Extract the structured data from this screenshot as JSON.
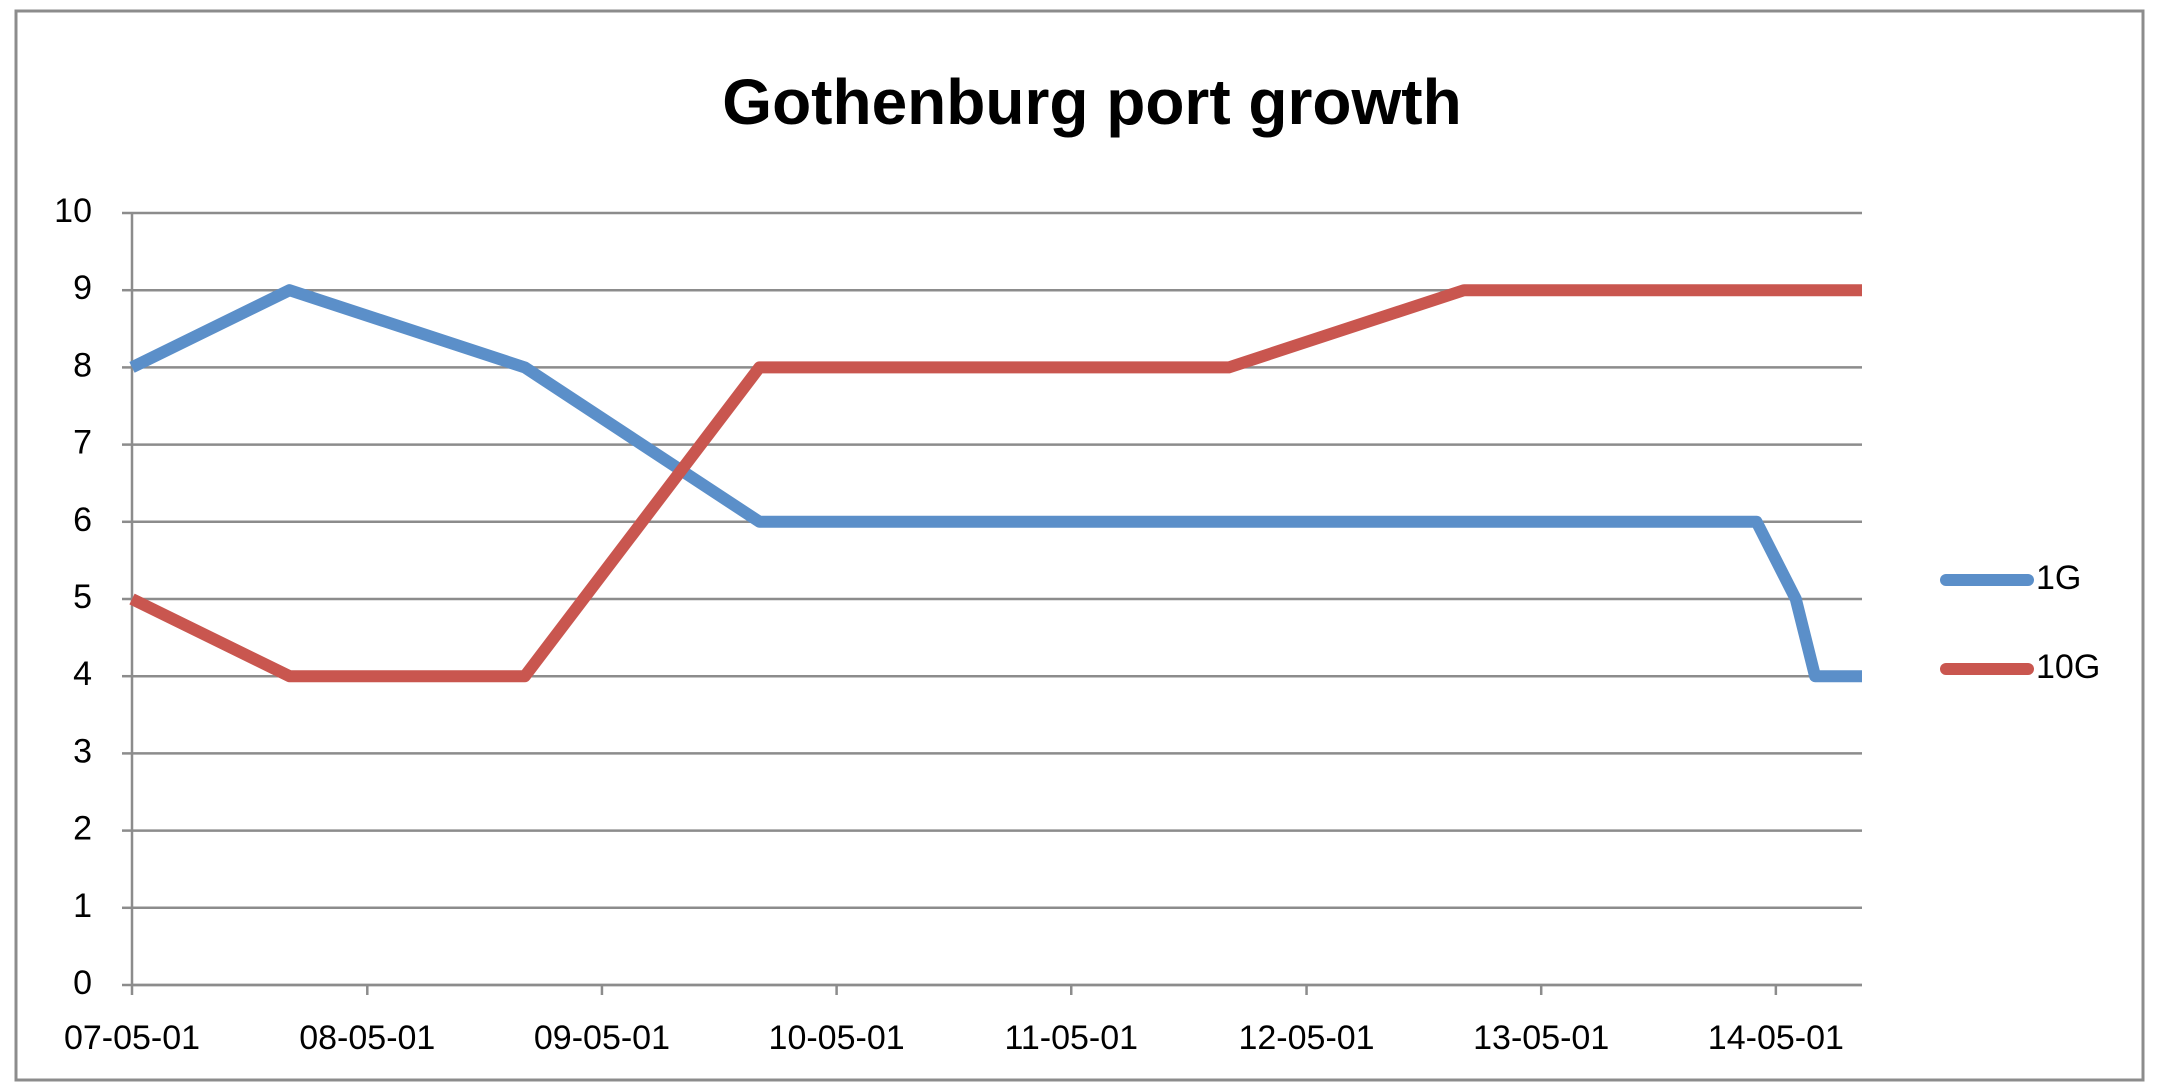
{
  "chart_data": {
    "type": "line",
    "title": "Gothenburg port growth",
    "x": [
      "07-05-01",
      "08-01-01",
      "09-01-01",
      "10-01-01",
      "11-01-01",
      "12-01-01",
      "13-01-01",
      "14-04-01",
      "14-06-01",
      "14-07-01",
      "14-09-12"
    ],
    "series": [
      {
        "name": "1G",
        "color": "#5b8fc9",
        "values": [
          8,
          9,
          8,
          6,
          6,
          6,
          6,
          6,
          5,
          4,
          4
        ]
      },
      {
        "name": "10G",
        "color": "#c9564f",
        "values": [
          5,
          4,
          4,
          8,
          8,
          8,
          9,
          9,
          9,
          9,
          9
        ]
      }
    ],
    "xlim": [
      "07-05-01",
      "14-09-12"
    ],
    "xticks": [
      "07-05-01",
      "08-05-01",
      "09-05-01",
      "10-05-01",
      "11-05-01",
      "12-05-01",
      "13-05-01",
      "14-05-01"
    ],
    "ylim": [
      0,
      10
    ],
    "yticks": [
      0,
      1,
      2,
      3,
      4,
      5,
      6,
      7,
      8,
      9,
      10
    ],
    "grid": true,
    "legend": "right"
  }
}
